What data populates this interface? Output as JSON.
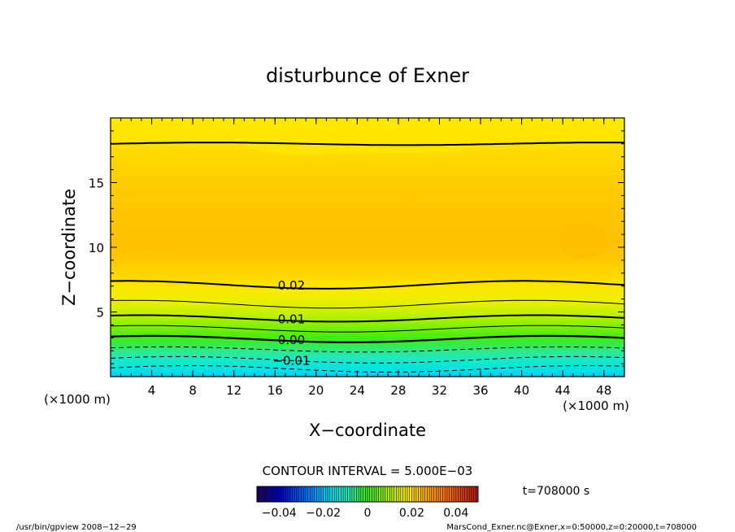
{
  "chart_data": {
    "type": "contour",
    "title": "disturbunce of Exner",
    "xlabel": "X−coordinate",
    "ylabel": "Z−coordinate",
    "x_unit": "(×1000 m)",
    "z_unit": "(×1000 m)",
    "xlim": [
      0,
      50
    ],
    "ylim": [
      0,
      20
    ],
    "x_ticks": [
      4,
      8,
      12,
      16,
      20,
      24,
      28,
      32,
      36,
      40,
      44,
      48
    ],
    "y_ticks": [
      5,
      10,
      15
    ],
    "contour_labels": [
      {
        "text": "0.02",
        "x": 17.6,
        "z": 7.1
      },
      {
        "text": "0.01",
        "x": 17.6,
        "z": 4.5
      },
      {
        "text": "0.00",
        "x": 17.6,
        "z": 2.9
      },
      {
        "text": "−0.01",
        "x": 17.6,
        "z": 1.3
      }
    ],
    "contour_interval_text": "CONTOUR INTERVAL = 5.000E−03",
    "colorbar": {
      "range": [
        -0.05,
        0.05
      ],
      "tick_values": [
        -0.04,
        -0.02,
        0,
        0.02,
        0.04
      ],
      "tick_labels": [
        "−0.04",
        "−0.02",
        "0",
        "0.02",
        "0.04"
      ]
    },
    "time_text": "t=708000 s",
    "footer_left": "/usr/bin/gpview   2008−12−29",
    "footer_right": "MarsCond_Exner.nc@Exner,x=0:50000,z=0:20000,t=708000",
    "colors": {
      "surface": "#29e8b8",
      "mid": "#ffc800",
      "top": "#ffea00"
    },
    "field_levels": [
      {
        "z": 0.0,
        "value": -0.018
      },
      {
        "z": 0.6,
        "value": -0.015
      },
      {
        "z": 1.3,
        "value": -0.01
      },
      {
        "z": 2.1,
        "value": -0.005
      },
      {
        "z": 2.9,
        "value": 0.0
      },
      {
        "z": 3.7,
        "value": 0.005
      },
      {
        "z": 4.5,
        "value": 0.01
      },
      {
        "z": 5.6,
        "value": 0.015
      },
      {
        "z": 7.1,
        "value": 0.02
      },
      {
        "z": 9.0,
        "value": 0.023
      },
      {
        "z": 10.5,
        "value": 0.024
      },
      {
        "z": 13.5,
        "value": 0.023
      },
      {
        "z": 16.0,
        "value": 0.022
      },
      {
        "z": 18.0,
        "value": 0.02
      },
      {
        "z": 20.0,
        "value": 0.019
      }
    ]
  }
}
